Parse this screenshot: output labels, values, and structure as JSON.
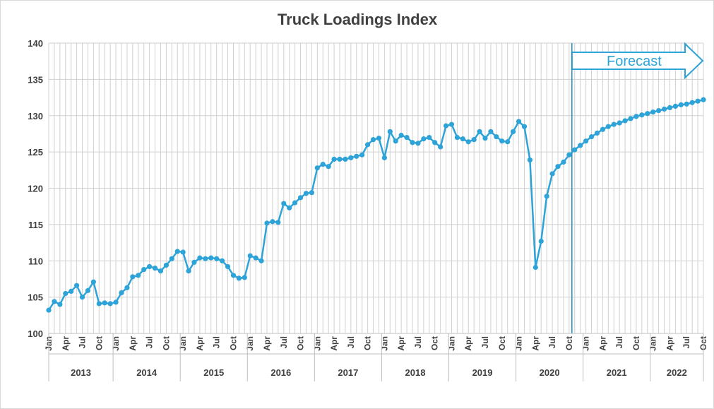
{
  "chart_data": {
    "type": "line",
    "title": "Truck Loadings Index",
    "xlabel": "",
    "ylabel": "",
    "ylim": [
      100,
      140
    ],
    "yticks": [
      100,
      105,
      110,
      115,
      120,
      125,
      130,
      135,
      140
    ],
    "grid": true,
    "legend": "none",
    "line_color": "#2ea3d8",
    "grid_color": "#d0d0d0",
    "x_start": "Jan 2013",
    "x_end": "Oct 2022",
    "month_tick_labels": [
      "Jan",
      "Apr",
      "Jul",
      "Oct"
    ],
    "years": [
      "2013",
      "2014",
      "2015",
      "2016",
      "2017",
      "2018",
      "2019",
      "2020",
      "2021",
      "2022"
    ],
    "annotation": {
      "text": "Forecast",
      "starts_after": "Oct 2020"
    },
    "series": [
      {
        "values": [
          103.2,
          104.4,
          104.0,
          105.5,
          105.8,
          106.6,
          105.0,
          105.9,
          107.1,
          104.1,
          104.2,
          104.1,
          104.3,
          105.6,
          106.3,
          107.8,
          108.0,
          108.8,
          109.2,
          109.0,
          108.6,
          109.4,
          110.3,
          111.3,
          111.2,
          108.6,
          109.8,
          110.4,
          110.3,
          110.4,
          110.3,
          110.0,
          109.2,
          108.0,
          107.6,
          107.7,
          110.7,
          110.4,
          110.0,
          115.2,
          115.4,
          115.3,
          117.9,
          117.3,
          118.0,
          118.7,
          119.3,
          119.4,
          122.8,
          123.3,
          123.0,
          124.0,
          124.0,
          124.0,
          124.2,
          124.4,
          124.6,
          126.0,
          126.7,
          126.9,
          124.2,
          127.8,
          126.5,
          127.3,
          127.0,
          126.3,
          126.2,
          126.8,
          127.0,
          126.3,
          125.7,
          128.6,
          128.8,
          127.0,
          126.8,
          126.4,
          126.7,
          127.8,
          126.9,
          127.8,
          127.1,
          126.5,
          126.4,
          127.8,
          129.2,
          128.5,
          123.9,
          109.1,
          112.7,
          118.9,
          122.0,
          123.0,
          123.6,
          124.6,
          125.3,
          125.9,
          126.5,
          127.1,
          127.6,
          128.1,
          128.5,
          128.8,
          129.0,
          129.3,
          129.6,
          129.9,
          130.1,
          130.3,
          130.5,
          130.7,
          130.9,
          131.1,
          131.3,
          131.5,
          131.6,
          131.8,
          132.0,
          132.2
        ]
      }
    ]
  }
}
